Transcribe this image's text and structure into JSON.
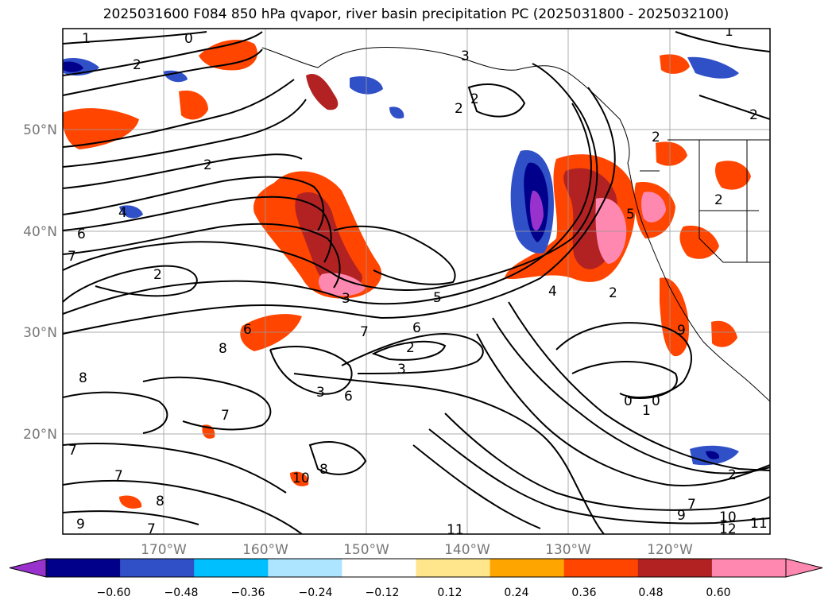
{
  "title": "2025031600 F084 850 hPa qvapor, river basin precipitation PC (2025031800 - 2025032100)",
  "latitude_labels": [
    "50°N",
    "40°N",
    "30°N",
    "20°N"
  ],
  "longitude_labels": [
    "170°W",
    "160°W",
    "150°W",
    "140°W",
    "130°W",
    "120°W"
  ],
  "colorbar": {
    "tick_labels": [
      "−0.60",
      "−0.48",
      "−0.36",
      "−0.24",
      "−0.12",
      "0.12",
      "0.24",
      "0.36",
      "0.48",
      "0.60"
    ],
    "colors": [
      "#9932cc",
      "#00008b",
      "#3050c8",
      "#00bfff",
      "#ade4ff",
      "#ffffff",
      "#ffe68c",
      "#ffa500",
      "#ff4500",
      "#b22222",
      "#ff88b0",
      "#ff88b0"
    ]
  },
  "contour_labels": [
    "1",
    "0",
    "2",
    "2",
    "2",
    "4",
    "6",
    "7",
    "2",
    "3",
    "5",
    "6",
    "4",
    "2",
    "3",
    "8",
    "7",
    "8",
    "6",
    "7",
    "7",
    "8",
    "7",
    "9",
    "7",
    "10",
    "8",
    "0",
    "0",
    "1",
    "2",
    "7",
    "9",
    "10",
    "12",
    "11",
    "11",
    "3",
    "2",
    "2",
    "2",
    "2",
    "1",
    "3",
    "6",
    "5",
    "9",
    "2"
  ]
}
